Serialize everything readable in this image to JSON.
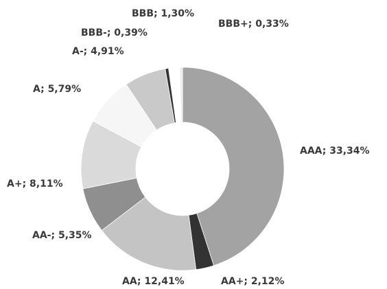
{
  "chart_data": {
    "type": "donut",
    "values": [
      33.34,
      2.12,
      12.41,
      5.35,
      8.11,
      5.79,
      4.91,
      0.39,
      1.3,
      0.33
    ],
    "value_labels": [
      "AAA; 33,34%",
      "AA+; 2,12%",
      "AA; 12,41%",
      "AA-; 5,35%",
      "A+; 8,11%",
      "A; 5,79%",
      "A-; 4,91%",
      "BBB-; 0,39%",
      "BBB; 1,30%",
      "BBB+; 0,33%"
    ],
    "colors": [
      "#a3a3a3",
      "#333333",
      "#c4c4c4",
      "#8f8f8f",
      "#dadada",
      "#f6f6f6",
      "#c9c9c9",
      "#333333",
      "#ffffff",
      "#ececec"
    ]
  }
}
